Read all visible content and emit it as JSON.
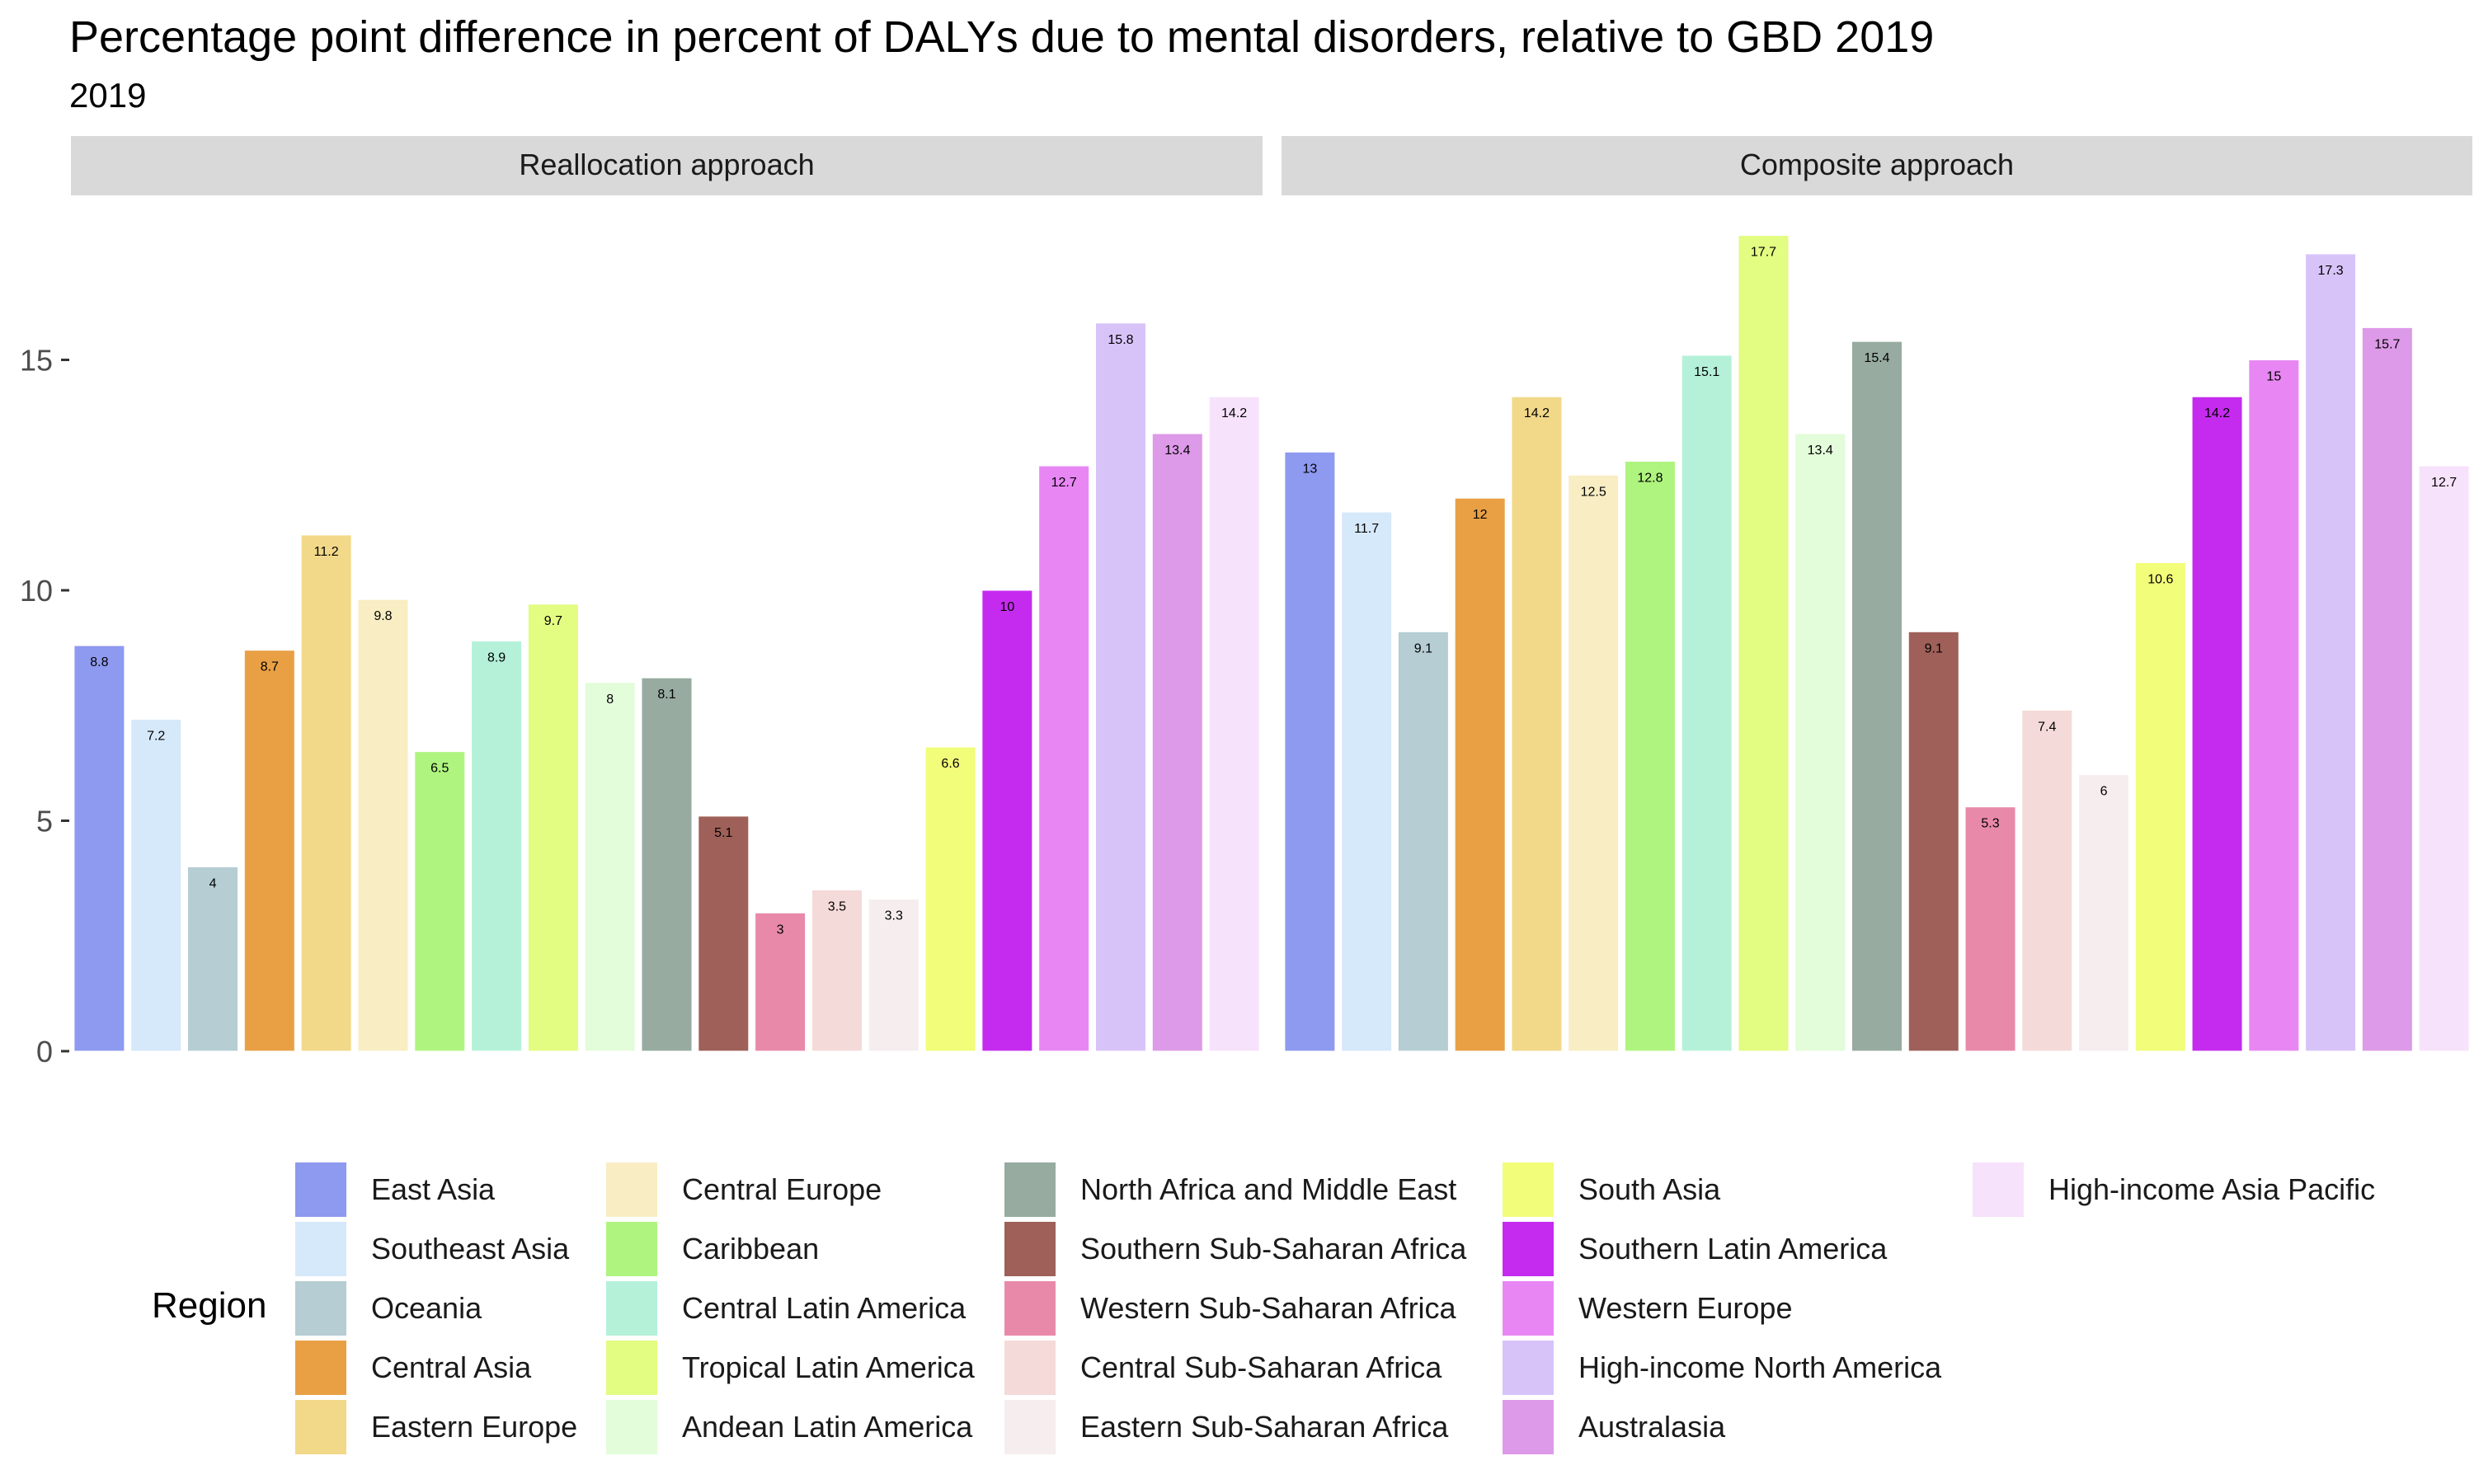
{
  "chart_data": {
    "type": "bar",
    "title": "Percentage point difference in percent of DALYs due to mental disorders, relative to GBD 2019",
    "subtitle": "2019",
    "ylim": [
      0,
      17.7
    ],
    "y_ticks": [
      "0",
      "5",
      "10",
      "15"
    ],
    "y_tick_values": [
      0,
      5,
      10,
      15
    ],
    "grid": false,
    "legend_title": "Region",
    "legend_position": "bottom",
    "categories": [
      "East Asia",
      "Southeast Asia",
      "Oceania",
      "Central Asia",
      "Eastern Europe",
      "Central Europe",
      "Caribbean",
      "Central Latin America",
      "Tropical Latin America",
      "Andean Latin America",
      "North Africa and Middle East",
      "Southern Sub-Saharan Africa",
      "Western Sub-Saharan Africa",
      "Central Sub-Saharan Africa",
      "Eastern Sub-Saharan Africa",
      "South Asia",
      "Southern Latin America",
      "Western Europe",
      "High-income North America",
      "Australasia",
      "High-income Asia Pacific"
    ],
    "colors": [
      "#8E99F0",
      "#D6E9FA",
      "#B5CDD3",
      "#E9A044",
      "#F2D889",
      "#F8EDC3",
      "#AFF47F",
      "#B5F1D9",
      "#E3FC82",
      "#E3FCDA",
      "#97ABA0",
      "#9E6058",
      "#E889AA",
      "#F4DAD8",
      "#F6EDEF",
      "#F2FD79",
      "#C52BEE",
      "#E887F4",
      "#D8C3F9",
      "#DD9AE8",
      "#F7E2FB"
    ],
    "panels": [
      {
        "name": "Reallocation approach",
        "values": [
          8.8,
          7.2,
          4,
          8.7,
          11.2,
          9.8,
          6.5,
          8.9,
          9.7,
          8,
          8.1,
          5.1,
          3,
          3.5,
          3.3,
          6.6,
          10,
          12.7,
          15.8,
          13.4,
          14.2
        ]
      },
      {
        "name": "Composite approach",
        "values": [
          13,
          11.7,
          9.1,
          12,
          14.2,
          12.5,
          12.8,
          15.1,
          17.7,
          13.4,
          15.4,
          9.1,
          5.3,
          7.4,
          6,
          10.6,
          14.2,
          15,
          17.3,
          15.7,
          12.7
        ]
      }
    ]
  }
}
